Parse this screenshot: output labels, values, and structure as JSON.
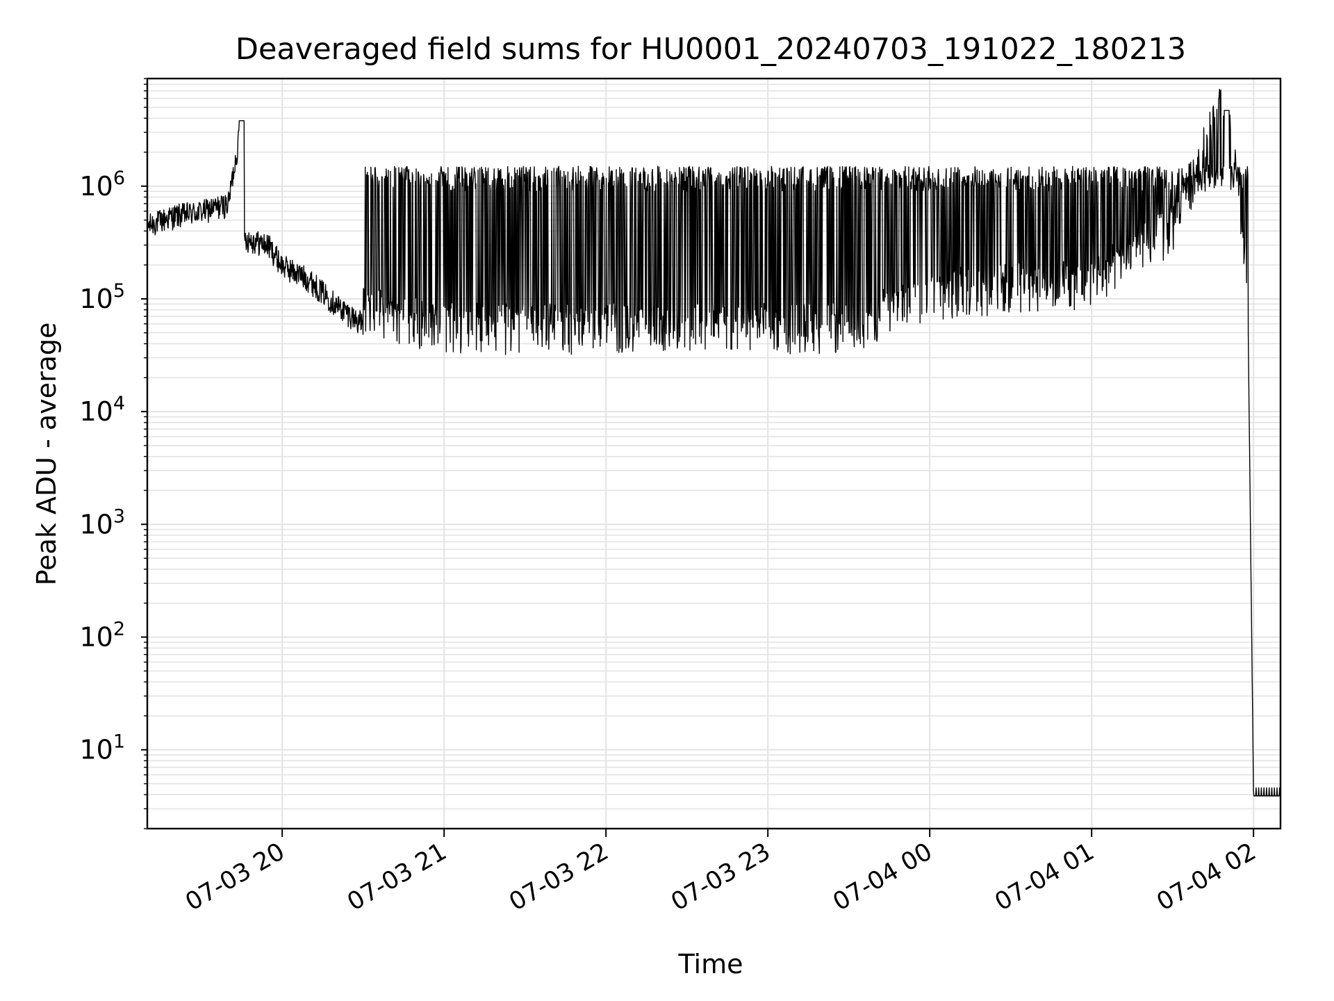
{
  "chart_data": {
    "type": "line",
    "title": "Deaveraged field sums for HU0001_20240703_191022_180213",
    "xlabel": "Time",
    "ylabel": "Peak ADU - average",
    "yscale": "log",
    "ylim": [
      2,
      9000000
    ],
    "xlim": [
      "2024-07-03 19:10",
      "2024-07-04 02:10"
    ],
    "x_ticks": [
      {
        "value": "2024-07-03 20:00",
        "label": "07-03 20"
      },
      {
        "value": "2024-07-03 21:00",
        "label": "07-03 21"
      },
      {
        "value": "2024-07-03 22:00",
        "label": "07-03 22"
      },
      {
        "value": "2024-07-03 23:00",
        "label": "07-03 23"
      },
      {
        "value": "2024-07-04 00:00",
        "label": "07-04 00"
      },
      {
        "value": "2024-07-04 01:00",
        "label": "07-04 01"
      },
      {
        "value": "2024-07-04 02:00",
        "label": "07-04 02"
      }
    ],
    "y_ticks": [
      {
        "value": 10,
        "base": "10",
        "exp": "1"
      },
      {
        "value": 100,
        "base": "10",
        "exp": "2"
      },
      {
        "value": 1000,
        "base": "10",
        "exp": "3"
      },
      {
        "value": 10000,
        "base": "10",
        "exp": "4"
      },
      {
        "value": 100000,
        "base": "10",
        "exp": "5"
      },
      {
        "value": 1000000,
        "base": "10",
        "exp": "6"
      }
    ],
    "grid": true,
    "line_color": "#000000",
    "grid_color": "#e3e3e3",
    "series": [
      {
        "values": [
          {
            "x": "2024-07-03 19:10",
            "y": 450000
          },
          {
            "x": "2024-07-03 19:20",
            "y": 550000
          },
          {
            "x": "2024-07-03 19:30",
            "y": 600000
          },
          {
            "x": "2024-07-03 19:40",
            "y": 700000
          },
          {
            "x": "2024-07-03 19:45",
            "y": 3800000
          },
          {
            "x": "2024-07-03 19:46",
            "y": 350000
          },
          {
            "x": "2024-07-03 19:55",
            "y": 300000
          },
          {
            "x": "2024-07-03 20:00",
            "y": 200000
          },
          {
            "x": "2024-07-03 20:10",
            "y": 150000
          },
          {
            "x": "2024-07-03 20:20",
            "y": 90000
          },
          {
            "x": "2024-07-03 20:30",
            "y": 60000
          },
          {
            "x": "2024-07-03 20:40",
            "y": 50000
          },
          {
            "x": "2024-07-03 20:50",
            "y": 45000
          },
          {
            "x": "2024-07-03 21:00",
            "y": 40000
          },
          {
            "x": "2024-07-03 21:10",
            "y": 40000
          },
          {
            "x": "2024-07-03 21:30",
            "y": 40000
          },
          {
            "x": "2024-07-03 22:00",
            "y": 40000
          },
          {
            "x": "2024-07-03 22:30",
            "y": 40000
          },
          {
            "x": "2024-07-03 23:00",
            "y": 40000
          },
          {
            "x": "2024-07-03 23:30",
            "y": 40000
          },
          {
            "x": "2024-07-04 00:00",
            "y": 80000
          },
          {
            "x": "2024-07-04 00:30",
            "y": 90000
          },
          {
            "x": "2024-07-04 01:00",
            "y": 100000
          },
          {
            "x": "2024-07-04 01:30",
            "y": 300000
          },
          {
            "x": "2024-07-04 01:50",
            "y": 4700000
          },
          {
            "x": "2024-07-04 01:55",
            "y": 450000
          },
          {
            "x": "2024-07-04 01:58",
            "y": 60000
          },
          {
            "x": "2024-07-04 02:00",
            "y": 4
          }
        ]
      }
    ]
  }
}
